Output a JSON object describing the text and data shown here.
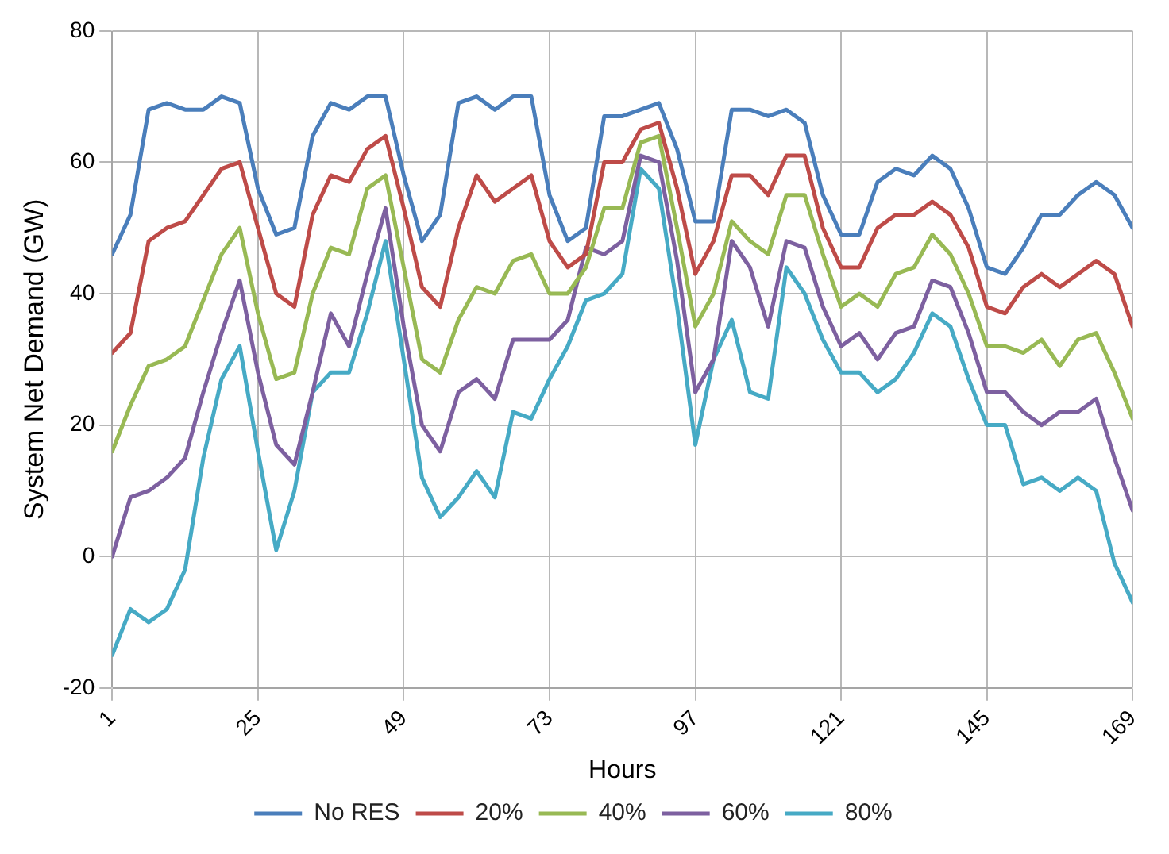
{
  "chart_data": {
    "type": "line",
    "xlabel": "Hours",
    "ylabel": "System Net Demand (GW)",
    "x": [
      1,
      4,
      7,
      10,
      13,
      16,
      19,
      22,
      25,
      28,
      31,
      34,
      37,
      40,
      43,
      46,
      49,
      52,
      55,
      58,
      61,
      64,
      67,
      70,
      73,
      76,
      79,
      82,
      85,
      88,
      91,
      94,
      97,
      100,
      103,
      106,
      109,
      112,
      115,
      118,
      121,
      124,
      127,
      130,
      133,
      136,
      139,
      142,
      145,
      148,
      151,
      154,
      157,
      160,
      163,
      166,
      169
    ],
    "series": [
      {
        "name": "No RES",
        "color": "#4a7ebb",
        "values": [
          46,
          52,
          68,
          69,
          68,
          68,
          70,
          69,
          56,
          49,
          50,
          64,
          69,
          68,
          70,
          70,
          58,
          48,
          52,
          69,
          70,
          68,
          70,
          70,
          55,
          48,
          50,
          67,
          67,
          68,
          69,
          62,
          51,
          51,
          68,
          68,
          67,
          68,
          66,
          55,
          49,
          49,
          57,
          59,
          58,
          61,
          59,
          53,
          44,
          43,
          47,
          52,
          52,
          55,
          57,
          55,
          50
        ]
      },
      {
        "name": "20%",
        "color": "#be4b48",
        "values": [
          31,
          34,
          48,
          50,
          51,
          55,
          59,
          60,
          50,
          40,
          38,
          52,
          58,
          57,
          62,
          64,
          53,
          41,
          38,
          50,
          58,
          54,
          56,
          58,
          48,
          44,
          46,
          60,
          60,
          65,
          66,
          56,
          43,
          48,
          58,
          58,
          55,
          61,
          61,
          50,
          44,
          44,
          50,
          52,
          52,
          54,
          52,
          47,
          38,
          37,
          41,
          43,
          41,
          43,
          45,
          43,
          35
        ]
      },
      {
        "name": "40%",
        "color": "#98b954",
        "values": [
          16,
          23,
          29,
          30,
          32,
          39,
          46,
          50,
          37,
          27,
          28,
          40,
          47,
          46,
          56,
          58,
          44,
          30,
          28,
          36,
          41,
          40,
          45,
          46,
          40,
          40,
          44,
          53,
          53,
          63,
          64,
          50,
          35,
          40,
          51,
          48,
          46,
          55,
          55,
          46,
          38,
          40,
          38,
          43,
          44,
          49,
          46,
          40,
          32,
          32,
          31,
          33,
          29,
          33,
          34,
          28,
          21
        ]
      },
      {
        "name": "60%",
        "color": "#7d60a0",
        "values": [
          0,
          9,
          10,
          12,
          15,
          25,
          34,
          42,
          28,
          17,
          14,
          25,
          37,
          32,
          43,
          53,
          35,
          20,
          16,
          25,
          27,
          24,
          33,
          33,
          33,
          36,
          47,
          46,
          48,
          61,
          60,
          45,
          25,
          30,
          48,
          44,
          35,
          48,
          47,
          38,
          32,
          34,
          30,
          34,
          35,
          42,
          41,
          34,
          25,
          25,
          22,
          20,
          22,
          22,
          24,
          15,
          7
        ]
      },
      {
        "name": "80%",
        "color": "#46aac5",
        "values": [
          -15,
          -8,
          -10,
          -8,
          -2,
          15,
          27,
          32,
          16,
          1,
          10,
          25,
          28,
          28,
          37,
          48,
          30,
          12,
          6,
          9,
          13,
          9,
          22,
          21,
          27,
          32,
          39,
          40,
          43,
          59,
          56,
          38,
          17,
          30,
          36,
          25,
          24,
          44,
          40,
          33,
          28,
          28,
          25,
          27,
          31,
          37,
          35,
          27,
          20,
          20,
          11,
          12,
          10,
          12,
          10,
          -1,
          -7
        ]
      }
    ],
    "xlim": [
      1,
      169
    ],
    "xticks": [
      1,
      25,
      49,
      73,
      97,
      121,
      145,
      169
    ],
    "ylim": [
      -20,
      80
    ],
    "yticks": [
      -20,
      0,
      20,
      40,
      60,
      80
    ],
    "grid": true,
    "legend": "bottom",
    "marker": "none",
    "line_style": "solid"
  }
}
